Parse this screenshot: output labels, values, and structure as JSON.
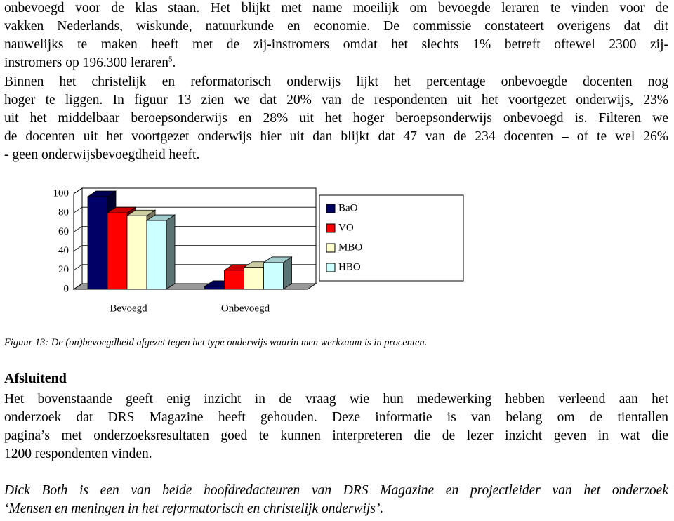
{
  "paragraph1": {
    "lines": [
      "onbevoegd voor de klas staan. Het blijkt met name moeilijk om bevoegde leraren te vinden voor de",
      "vakken Nederlands, wiskunde, natuurkunde en economie. De commissie constateert overigens dat dit",
      "nauwelijks te maken heeft met de zij-instromers omdat het slechts 1% betreft oftewel 2300 zij-"
    ],
    "last": {
      "text": "instromers op 196.300 leraren",
      "footnote": "5",
      "end": "."
    }
  },
  "paragraph2": {
    "lines": [
      "Binnen het christelijk en reformatorisch onderwijs lijkt het percentage onbevoegde docenten nog",
      "hoger te liggen. In figuur 13 zien we dat 20% van de respondenten uit het voortgezet onderwijs, 23%",
      "uit het middelbaar beroepsonderwijs en 28% uit het hoger beroepsonderwijs onbevoegd is. Filteren we",
      "de docenten uit het voortgezet onderwijs hier uit dan blijkt dat 47 van de 234 docenten – of te wel 26%",
      "- geen onderwijsbevoegdheid heeft."
    ]
  },
  "chart_data": {
    "type": "bar3d",
    "categories": [
      "Bevoegd",
      "Onbevoegd"
    ],
    "series": [
      {
        "name": "BaO",
        "color": "#000066",
        "values": [
          97,
          3
        ]
      },
      {
        "name": "VO",
        "color": "#ff0000",
        "values": [
          80,
          20
        ]
      },
      {
        "name": "MBO",
        "color": "#ffffcc",
        "values": [
          77,
          23
        ]
      },
      {
        "name": "HBO",
        "color": "#ccffff",
        "values": [
          72,
          28
        ]
      }
    ],
    "ylim": [
      0,
      100
    ],
    "yticks": [
      0,
      20,
      40,
      60,
      80,
      100
    ],
    "grid": true,
    "legend": "right"
  },
  "caption": "Figuur 13: De (on)bevoegdheid afgezet tegen het type onderwijs waarin men werkzaam is in procenten.",
  "heading": "Afsluitend",
  "paragraph3": {
    "lines": [
      "Het bovenstaande geeft enig inzicht in de vraag wie hun medewerking hebben verleend aan het",
      "onderzoek dat DRS Magazine heeft gehouden. Deze informatie is van belang om de tientallen",
      "pagina’s met onderzoeksresultaten goed te kunnen interpreteren die de lezer inzicht geven in wat die",
      "1200 respondenten vinden."
    ]
  },
  "author_note": {
    "lines": [
      "Dick Both is een van beide hoofdredacteuren van DRS Magazine en projectleider van het onderzoek",
      "‘Mensen en meningen in het reformatorisch en christelijk onderwijs’."
    ]
  }
}
